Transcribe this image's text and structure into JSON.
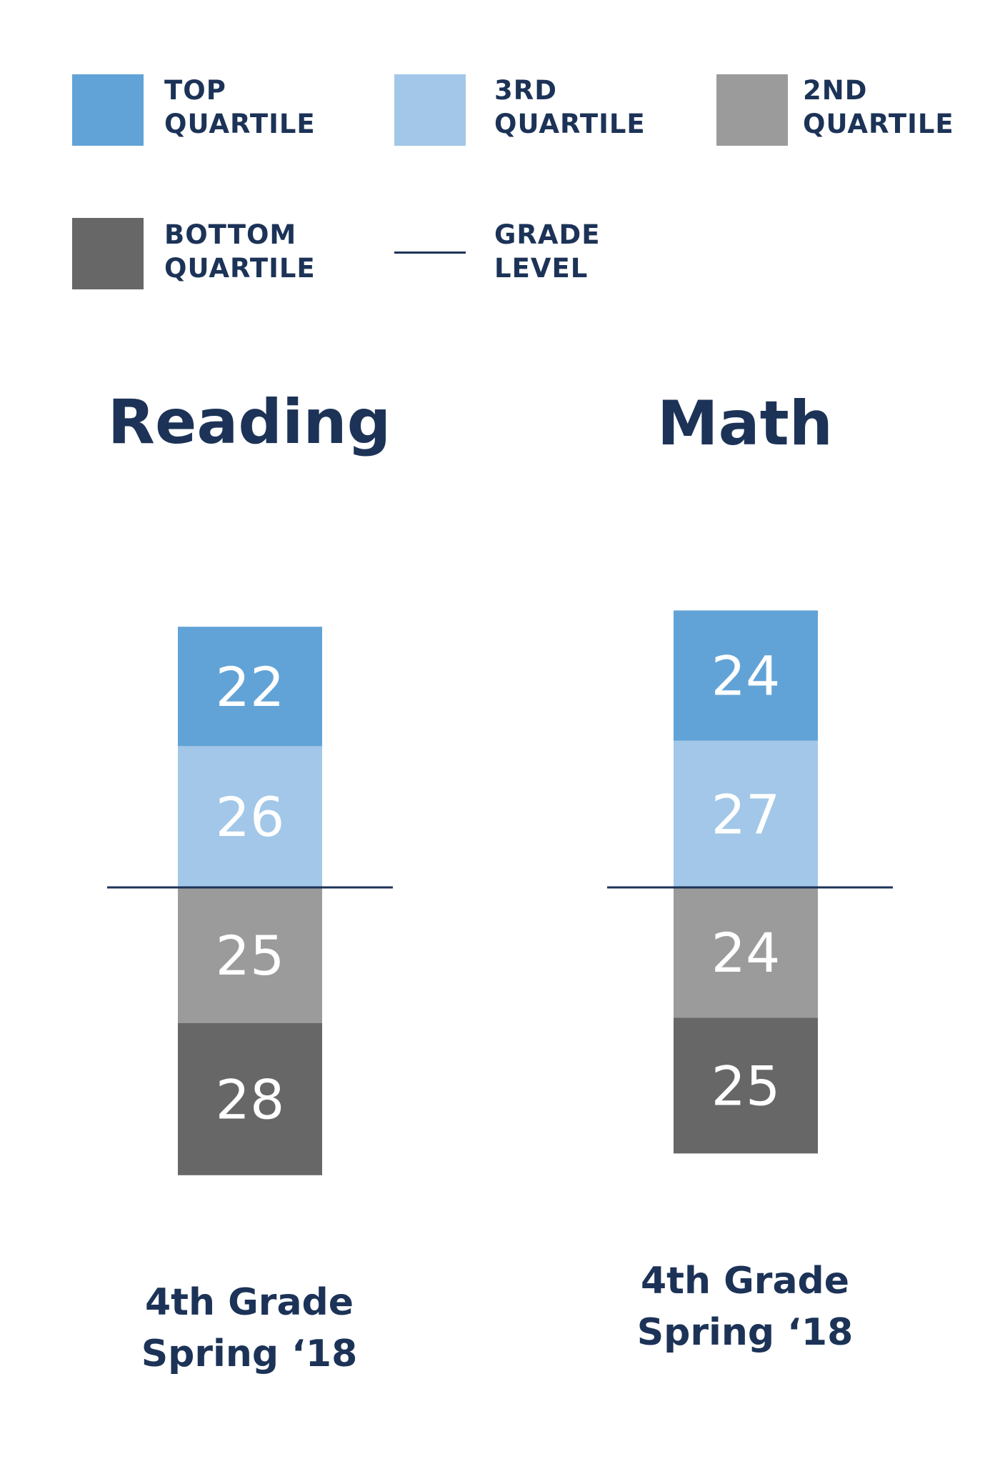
{
  "legend": {
    "top": {
      "line1": "TOP",
      "line2": "QUARTILE",
      "color": "#61a3d7"
    },
    "third": {
      "line1": "3RD",
      "line2": "QUARTILE",
      "color": "#a2c7e8"
    },
    "second": {
      "line1": "2ND",
      "line2": "QUARTILE",
      "color": "#9b9b9b"
    },
    "bottom": {
      "line1": "BOTTOM",
      "line2": "QUARTILE",
      "color": "#676767"
    },
    "grade_level": {
      "line1": "GRADE",
      "line2": "LEVEL",
      "color": "#1c3357"
    }
  },
  "chart_data": [
    {
      "type": "bar",
      "stacked": true,
      "title": "Reading",
      "categories": [
        "4th Grade Spring ‘18"
      ],
      "category_lines": [
        "4th Grade",
        "Spring ‘18"
      ],
      "series": [
        {
          "name": "TOP QUARTILE",
          "values": [
            22
          ],
          "color": "#61a3d7"
        },
        {
          "name": "3RD QUARTILE",
          "values": [
            26
          ],
          "color": "#a2c7e8"
        },
        {
          "name": "2ND QUARTILE",
          "values": [
            25
          ],
          "color": "#9b9b9b"
        },
        {
          "name": "BOTTOM QUARTILE",
          "values": [
            28
          ],
          "color": "#676767"
        }
      ],
      "grade_level_line": "between 3RD QUARTILE and 2ND QUARTILE",
      "legend": "top",
      "grid": false
    },
    {
      "type": "bar",
      "stacked": true,
      "title": "Math",
      "categories": [
        "4th Grade Spring ‘18"
      ],
      "category_lines": [
        "4th Grade",
        "Spring ‘18"
      ],
      "series": [
        {
          "name": "TOP QUARTILE",
          "values": [
            24
          ],
          "color": "#61a3d7"
        },
        {
          "name": "3RD QUARTILE",
          "values": [
            27
          ],
          "color": "#a2c7e8"
        },
        {
          "name": "2ND QUARTILE",
          "values": [
            24
          ],
          "color": "#9b9b9b"
        },
        {
          "name": "BOTTOM QUARTILE",
          "values": [
            25
          ],
          "color": "#676767"
        }
      ],
      "grade_level_line": "between 3RD QUARTILE and 2ND QUARTILE",
      "legend": "top",
      "grid": false
    }
  ]
}
